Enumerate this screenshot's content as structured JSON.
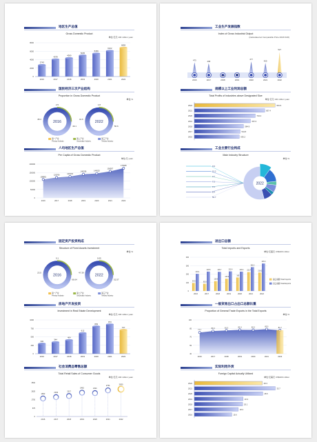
{
  "charts": [
    {
      "id": "gdp",
      "cn": "地区生产总值",
      "en": "Gross Domestic Product",
      "unit": "单位:亿元 100 million yuan",
      "type": "bar",
      "categories": [
        "2016",
        "2017",
        "2018",
        "2019",
        "2020",
        "2021",
        "2022"
      ],
      "values": [
        2743,
        4078,
        4380,
        5005,
        5469,
        6102,
        6855
      ],
      "ylim": [
        0,
        6855
      ]
    },
    {
      "id": "ind_output",
      "cn": "工业生产发展指数",
      "en": "Index of Gross Industrial Output",
      "unit": "(Calculated at Comparable Price 2016=100)",
      "type": "scatter",
      "categories": [
        "2016",
        "2017",
        "2018",
        "2019",
        "2020",
        "2021",
        "2022"
      ],
      "values": [
        473,
        468,
        394,
        398,
        477,
        469,
        527
      ]
    },
    {
      "id": "gdp_prop",
      "cn": "国民经济三次产业结构",
      "en": "Proportion in Gross Domestic Product",
      "unit": "单位:%",
      "type": "pie",
      "pies": [
        {
          "year": "2016",
          "labels": [
            "2.5",
            "48.4",
            "49.1"
          ]
        },
        {
          "year": "2022",
          "labels": [
            "1.8",
            "41.6",
            "56.6"
          ]
        }
      ],
      "legend": [
        {
          "cn": "第一产业",
          "en": "Primary Industry"
        },
        {
          "cn": "第二产业",
          "en": "Secondary Industry"
        },
        {
          "cn": "第三产业",
          "en": "Tertiary Industry"
        }
      ]
    },
    {
      "id": "above_size",
      "cn": "规模以上工业利润总额",
      "en": "Total Profits of Industries above Designated Size",
      "unit": "单位:亿元 100 million yuan",
      "type": "bar-horizontal",
      "categories": [
        "2022",
        "2021",
        "2020",
        "2019",
        "2018",
        "2017",
        "2016"
      ],
      "values": [
        961.9,
        837.4,
        724.4,
        667.6,
        584.9,
        544.8,
        535.2
      ]
    },
    {
      "id": "per_capita",
      "cn": "人均地区生产总值",
      "en": "Per Capita of Gross Domestic Product",
      "unit": "单位:元 yuan",
      "type": "area",
      "categories": [
        "2016",
        "2017",
        "2018",
        "2019",
        "2020",
        "2021",
        "2022"
      ],
      "values": [
        108981,
        120706,
        126403,
        140036,
        144520,
        156957,
        175305
      ]
    },
    {
      "id": "main_industry",
      "cn": "工业主要行业构成",
      "en": "Main Industry Structure",
      "unit": "单位:%",
      "type": "pie",
      "center": "2022",
      "labels": [
        "9.9",
        "13.2",
        "3.7",
        "7.2",
        "3.1",
        "8.4",
        "53.7"
      ]
    },
    {
      "id": "fixed_asset",
      "cn": "固定资产投资构成",
      "en": "Structure of Fixed Assets Investment",
      "unit": "单位:%",
      "type": "pie",
      "pies": [
        {
          "year": "2016",
          "labels": [
            "0.1",
            "23.5",
            "66.64"
          ]
        },
        {
          "year": "2022",
          "labels": [
            "0.05",
            "47.39",
            "52.57"
          ]
        }
      ],
      "legend": [
        {
          "cn": "第一产业",
          "en": "Primary Industry"
        },
        {
          "cn": "第二产业",
          "en": "Secondary Industry"
        },
        {
          "cn": "第三产业",
          "en": "Tertiary Industry"
        }
      ]
    },
    {
      "id": "import_export",
      "cn": "进出口总额",
      "en": "Total Imports and Exports",
      "unit": "单位:亿美元 US$100 million",
      "type": "bar",
      "categories": [
        "2016",
        "2017",
        "2018",
        "2019",
        "2020",
        "2021",
        "2022"
      ],
      "series": [
        {
          "name": "进口总额 Total Imports",
          "values": [
            94.9,
            85.9,
            116.6,
            145.3,
            160.0,
            223.7,
            218.2
          ]
        },
        {
          "name": "出口总额 Total Exports",
          "values": [
            203.1,
            229.5,
            226.7,
            232.4,
            229.4,
            282.2,
            325.3
          ]
        }
      ]
    },
    {
      "id": "real_estate",
      "cn": "房地产开发投资",
      "en": "Investment in Real Estate Development",
      "unit": "单位:亿元 100 million yuan",
      "type": "bar",
      "categories": [
        "2016",
        "2017",
        "2018",
        "2019",
        "2020",
        "2021",
        "2022"
      ],
      "values": [
        300,
        344,
        404,
        612,
        809,
        870,
        707
      ],
      "labels": [
        "300",
        "344",
        "404",
        "612",
        "809",
        "870",
        "707"
      ]
    },
    {
      "id": "general_trade",
      "cn": "一般贸易出口占出口总额比重",
      "en": "Proportion of General Trade Exports in the Total Exports",
      "unit": "单位:%",
      "type": "area",
      "categories": [
        "2016",
        "2017",
        "2018",
        "2019",
        "2020",
        "2021",
        "2022"
      ],
      "values": [
        77.7,
        80.3,
        81.3,
        82.4,
        82.2,
        83.5,
        81.7
      ]
    },
    {
      "id": "retail",
      "cn": "社会消费品零售总额",
      "en": "Total Retail Sales of Consumer Goods",
      "unit": "单位:亿元 100 million yuan",
      "type": "dot",
      "categories": [
        "2016",
        "2017",
        "2018",
        "2019",
        "2020",
        "2021",
        "2022"
      ],
      "values": [
        1863,
        2003,
        2117,
        2462,
        2421,
        2701,
        2830
      ]
    },
    {
      "id": "foreign",
      "cn": "实际利用外资",
      "en": "Foreign Capital Actually Utilized",
      "unit": "单位:亿美元 US$100 million",
      "type": "bar-horizontal",
      "categories": [
        "2022",
        "2021",
        "2020",
        "2019",
        "2018",
        "2017",
        "2016"
      ],
      "values": [
        28.3,
        33.7,
        28.5,
        20.3,
        20.1,
        18.3,
        15.6
      ]
    }
  ]
}
